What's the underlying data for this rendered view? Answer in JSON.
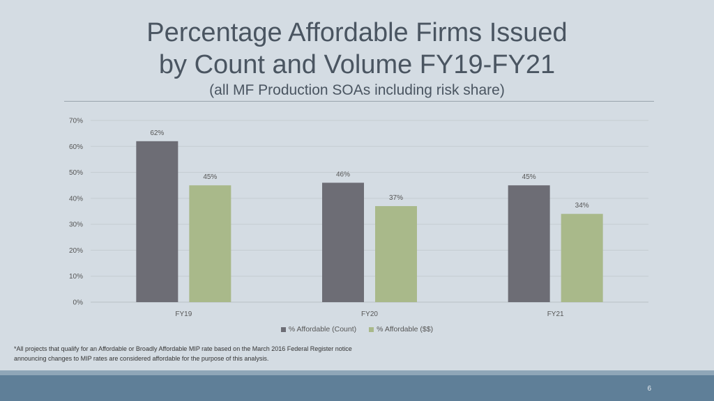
{
  "slide": {
    "title_line1": "Percentage Affordable Firms Issued",
    "title_line2": "by Count and Volume FY19-FY21",
    "subtitle": "(all MF Production SOAs including risk share)",
    "footnote": "*All projects that qualify for an Affordable or Broadly Affordable MIP rate based on the March 2016 Federal Register notice announcing changes to MIP rates are considered affordable for the purpose of this analysis.",
    "page_number": "6"
  },
  "chart_data": {
    "type": "bar",
    "categories": [
      "FY19",
      "FY20",
      "FY21"
    ],
    "series": [
      {
        "name": "% Affordable (Count)",
        "values": [
          62,
          46,
          45
        ],
        "labels": [
          "62%",
          "46%",
          "45%"
        ],
        "color": "#6d6d75"
      },
      {
        "name": "% Affordable ($$)",
        "values": [
          45,
          37,
          34
        ],
        "labels": [
          "45%",
          "37%",
          "34%"
        ],
        "color": "#a9b98a"
      }
    ],
    "ylim": [
      0,
      70
    ],
    "yticks": [
      0,
      10,
      20,
      30,
      40,
      50,
      60,
      70
    ],
    "ytick_labels": [
      "0%",
      "10%",
      "20%",
      "30%",
      "40%",
      "50%",
      "60%",
      "70%"
    ],
    "grid": true,
    "legend": "bottom-center"
  }
}
